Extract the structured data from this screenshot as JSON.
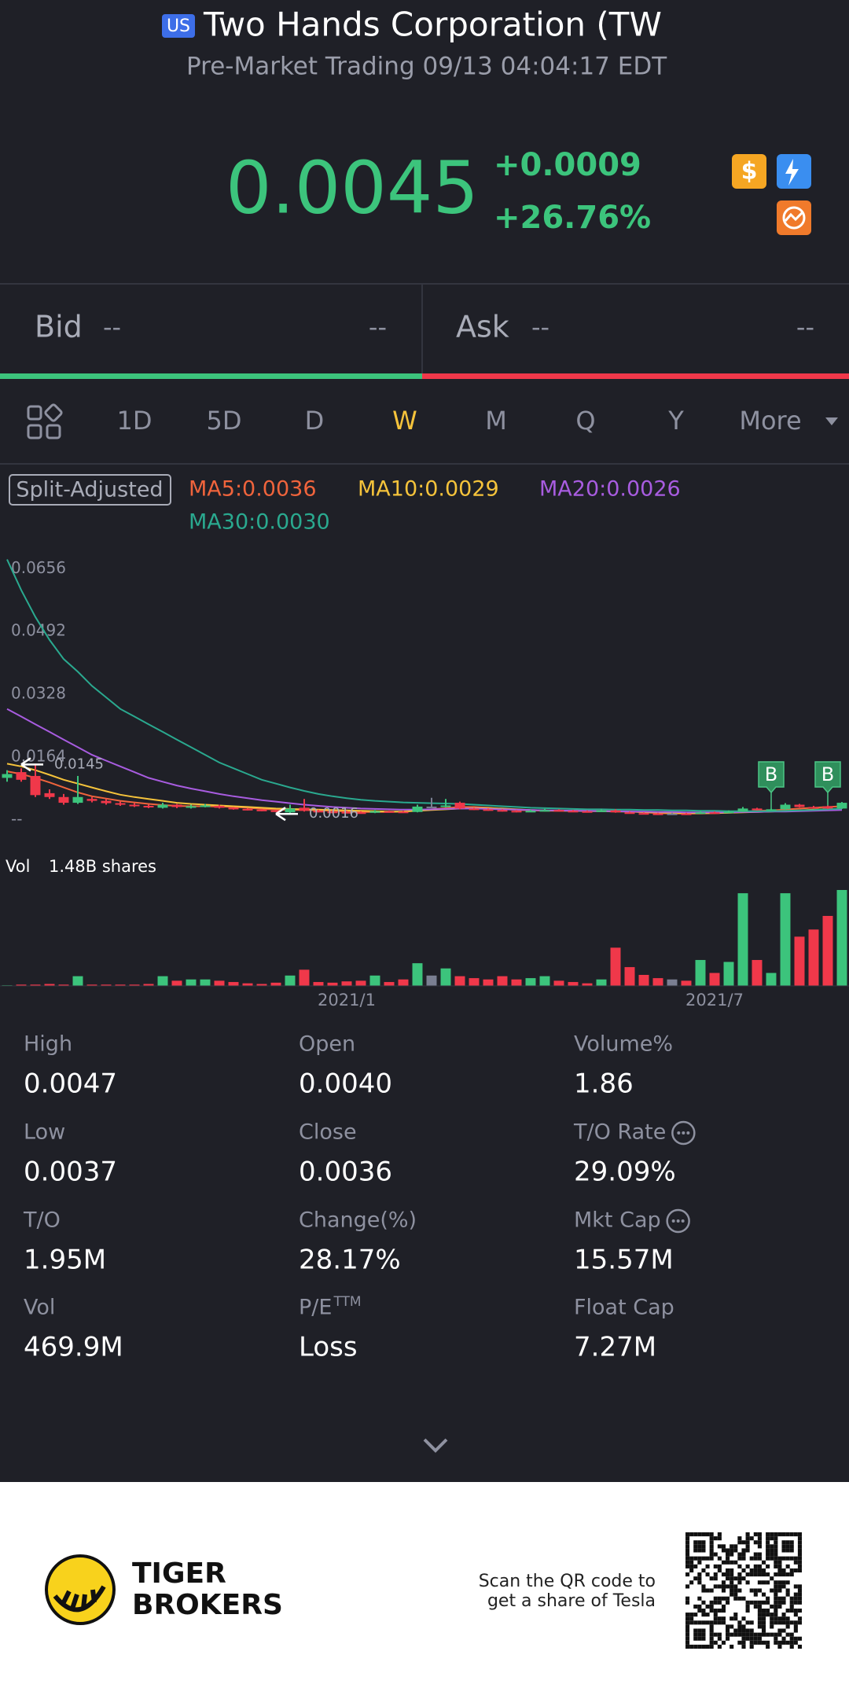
{
  "header": {
    "exchange_badge": "US",
    "title": "Two Hands Corporation (TWOH",
    "subtitle": "Pre-Market Trading 09/13 04:04:17 EDT"
  },
  "quote": {
    "price": "0.0045",
    "change": "+0.0009",
    "change_pct": "+26.76%"
  },
  "bid_ask": {
    "bid_label": "Bid",
    "bid_price": "--",
    "bid_size": "--",
    "ask_label": "Ask",
    "ask_price": "--",
    "ask_size": "--"
  },
  "tabs": {
    "items": [
      "1D",
      "5D",
      "D",
      "W",
      "M",
      "Q",
      "Y",
      "More"
    ],
    "active_index": 3
  },
  "chart_data": {
    "type": "candlestick",
    "badge": "Split-Adjusted",
    "categories": [
      null,
      null,
      null,
      null,
      null,
      null,
      null,
      null,
      null,
      null,
      null,
      null,
      null,
      null,
      null,
      null,
      null,
      null,
      null,
      null,
      null,
      null,
      null,
      null,
      "2021/1",
      null,
      null,
      null,
      null,
      null,
      null,
      null,
      null,
      null,
      null,
      null,
      null,
      null,
      null,
      null,
      null,
      null,
      null,
      null,
      null,
      null,
      null,
      null,
      null,
      null,
      "2021/7",
      null,
      null,
      null,
      null,
      null,
      null,
      null,
      null,
      null
    ],
    "open": [
      0.011,
      0.0125,
      0.0115,
      0.007,
      0.006,
      0.0045,
      0.0055,
      0.005,
      0.0044,
      0.004,
      0.0037,
      0.0032,
      0.004,
      0.0033,
      0.0035,
      0.0037,
      0.0032,
      0.0029,
      0.0027,
      0.0025,
      0.002,
      0.0032,
      0.0024,
      0.0022,
      0.0021,
      0.002,
      0.0019,
      0.0023,
      0.0022,
      0.0021,
      0.0035,
      0.0035,
      0.0045,
      0.003,
      0.0028,
      0.0026,
      0.0024,
      0.0022,
      0.0024,
      0.0026,
      0.0024,
      0.0023,
      0.0022,
      0.0025,
      0.002,
      0.0018,
      0.0017,
      0.0017,
      0.0017,
      0.0016,
      0.002,
      0.0019,
      0.0022,
      0.003,
      0.0026,
      0.0028,
      0.004,
      0.0034,
      0.0036,
      0.003
    ],
    "high": [
      0.013,
      0.0135,
      0.0145,
      0.008,
      0.0068,
      0.0115,
      0.006,
      0.0055,
      0.0048,
      0.0044,
      0.004,
      0.0045,
      0.0042,
      0.004,
      0.0042,
      0.004,
      0.0034,
      0.0031,
      0.0029,
      0.0027,
      0.004,
      0.0055,
      0.0027,
      0.0025,
      0.0024,
      0.0023,
      0.0026,
      0.0025,
      0.0024,
      0.004,
      0.0058,
      0.0055,
      0.0048,
      0.0032,
      0.003,
      0.0028,
      0.0026,
      0.0027,
      0.0029,
      0.0028,
      0.0026,
      0.0025,
      0.0028,
      0.0028,
      0.0022,
      0.002,
      0.0019,
      0.0019,
      0.0019,
      0.0023,
      0.0022,
      0.0025,
      0.0034,
      0.0032,
      0.003,
      0.0044,
      0.0042,
      0.0037,
      0.0038,
      0.0047
    ],
    "low": [
      0.01,
      0.01,
      0.006,
      0.0055,
      0.004,
      0.0042,
      0.0046,
      0.004,
      0.0037,
      0.0034,
      0.0031,
      0.003,
      0.0031,
      0.003,
      0.0033,
      0.003,
      0.0027,
      0.0025,
      0.0023,
      0.0021,
      0.0016,
      0.0022,
      0.002,
      0.0019,
      0.0018,
      0.0017,
      0.0018,
      0.002,
      0.0019,
      0.002,
      0.0033,
      0.0033,
      0.0028,
      0.0026,
      0.0024,
      0.0022,
      0.002,
      0.0021,
      0.0023,
      0.0022,
      0.0021,
      0.002,
      0.0021,
      0.0019,
      0.0017,
      0.0016,
      0.0016,
      0.0016,
      0.0016,
      0.0016,
      0.0018,
      0.0018,
      0.0021,
      0.0025,
      0.0025,
      0.0027,
      0.0033,
      0.0031,
      0.0029,
      0.0029
    ],
    "close": [
      0.012,
      0.0105,
      0.0065,
      0.006,
      0.0045,
      0.006,
      0.005,
      0.0044,
      0.004,
      0.0037,
      0.0034,
      0.004,
      0.0034,
      0.0036,
      0.0038,
      0.0032,
      0.0029,
      0.0027,
      0.0025,
      0.0023,
      0.003,
      0.0024,
      0.0022,
      0.0021,
      0.002,
      0.0019,
      0.0023,
      0.0022,
      0.0021,
      0.0035,
      0.0035,
      0.0038,
      0.003,
      0.0028,
      0.0026,
      0.0024,
      0.0022,
      0.0024,
      0.0026,
      0.0024,
      0.0023,
      0.0022,
      0.0025,
      0.002,
      0.0018,
      0.0017,
      0.0016,
      0.0017,
      0.0016,
      0.002,
      0.0019,
      0.0022,
      0.003,
      0.0026,
      0.0028,
      0.004,
      0.0034,
      0.0032,
      0.003,
      0.0045
    ],
    "up_color": "#3cc47c",
    "down_color": "#f0384a",
    "flat_color": "#7a7f92",
    "ylim": [
      0,
      0.0712
    ],
    "yticks": [
      {
        "value": 0,
        "label": "--"
      },
      0.0164,
      0.0328,
      0.0492,
      0.0656
    ],
    "grid": false,
    "series": [
      {
        "name": "MA5:0.0036",
        "color": "#f0643c",
        "values": [
          0.0127,
          0.012,
          0.011,
          0.0098,
          0.0085,
          0.0072,
          0.0062,
          0.0056,
          0.005,
          0.0046,
          0.0042,
          0.0039,
          0.0037,
          0.0036,
          0.0036,
          0.0035,
          0.0034,
          0.0032,
          0.0029,
          0.0027,
          0.0026,
          0.0026,
          0.0025,
          0.0024,
          0.0022,
          0.0021,
          0.0021,
          0.0021,
          0.0022,
          0.0025,
          0.0028,
          0.0031,
          0.0034,
          0.0034,
          0.0032,
          0.0029,
          0.0026,
          0.0025,
          0.0024,
          0.0024,
          0.0024,
          0.0024,
          0.0023,
          0.0023,
          0.0022,
          0.002,
          0.0018,
          0.0017,
          0.0017,
          0.0017,
          0.0018,
          0.0019,
          0.0021,
          0.0024,
          0.0025,
          0.0027,
          0.003,
          0.0032,
          0.0034,
          0.0036
        ]
      },
      {
        "name": "MA10:0.0029",
        "color": "#f5c33b",
        "values": [
          0.0147,
          0.014,
          0.013,
          0.0118,
          0.0105,
          0.0095,
          0.0085,
          0.0075,
          0.0066,
          0.006,
          0.0055,
          0.005,
          0.0045,
          0.0042,
          0.004,
          0.0038,
          0.0036,
          0.0034,
          0.0032,
          0.003,
          0.0029,
          0.0028,
          0.0027,
          0.0026,
          0.0025,
          0.0024,
          0.0023,
          0.0022,
          0.0022,
          0.0024,
          0.0026,
          0.0028,
          0.003,
          0.0031,
          0.0031,
          0.003,
          0.0028,
          0.0026,
          0.0025,
          0.0024,
          0.0024,
          0.0023,
          0.0023,
          0.0022,
          0.0022,
          0.0021,
          0.002,
          0.0019,
          0.0018,
          0.0018,
          0.0018,
          0.0019,
          0.002,
          0.0021,
          0.0022,
          0.0024,
          0.0025,
          0.0027,
          0.0028,
          0.0029
        ]
      },
      {
        "name": "MA20:0.0026",
        "color": "#a85ce0",
        "values": [
          0.029,
          0.027,
          0.025,
          0.023,
          0.021,
          0.019,
          0.017,
          0.0155,
          0.014,
          0.0125,
          0.011,
          0.01,
          0.009,
          0.0082,
          0.0075,
          0.0068,
          0.0062,
          0.0057,
          0.0052,
          0.0048,
          0.0044,
          0.004,
          0.0037,
          0.0034,
          0.0032,
          0.003,
          0.0029,
          0.0028,
          0.0027,
          0.0027,
          0.0028,
          0.0029,
          0.003,
          0.003,
          0.0029,
          0.0028,
          0.0027,
          0.0026,
          0.0025,
          0.0025,
          0.0024,
          0.0024,
          0.0023,
          0.0023,
          0.0022,
          0.0022,
          0.0021,
          0.0021,
          0.002,
          0.002,
          0.002,
          0.002,
          0.0021,
          0.0021,
          0.0022,
          0.0022,
          0.0023,
          0.0024,
          0.0025,
          0.0026
        ]
      },
      {
        "name": "MA30:0.0030",
        "color": "#2aa98f",
        "values": [
          0.068,
          0.06,
          0.053,
          0.047,
          0.042,
          0.0387,
          0.035,
          0.032,
          0.029,
          0.027,
          0.025,
          0.023,
          0.021,
          0.019,
          0.017,
          0.015,
          0.0135,
          0.012,
          0.0105,
          0.0095,
          0.0085,
          0.0076,
          0.0068,
          0.0062,
          0.0057,
          0.0053,
          0.005,
          0.0048,
          0.0046,
          0.0045,
          0.0044,
          0.0043,
          0.0042,
          0.004,
          0.0038,
          0.0036,
          0.0034,
          0.0032,
          0.0031,
          0.003,
          0.0029,
          0.0028,
          0.0028,
          0.0027,
          0.0027,
          0.0026,
          0.0026,
          0.0025,
          0.0025,
          0.0024,
          0.0024,
          0.0023,
          0.0023,
          0.0023,
          0.0023,
          0.0024,
          0.0025,
          0.0026,
          0.0028,
          0.003
        ]
      }
    ],
    "max_price": 0.0145,
    "min_price": 0.0016,
    "buy_markers": [
      {
        "label": "B",
        "index": 54
      },
      {
        "label": "B",
        "index": 58
      }
    ],
    "volume": {
      "label": "Vol",
      "total_label": "1.48B shares",
      "ylim": [
        0,
        1.48
      ],
      "values": [
        0.01,
        0.02,
        0.02,
        0.03,
        0.02,
        0.15,
        0.02,
        0.02,
        0.02,
        0.02,
        0.03,
        0.15,
        0.08,
        0.1,
        0.1,
        0.08,
        0.06,
        0.04,
        0.03,
        0.05,
        0.16,
        0.25,
        0.06,
        0.05,
        0.07,
        0.08,
        0.16,
        0.06,
        0.1,
        0.35,
        0.16,
        0.27,
        0.15,
        0.12,
        0.1,
        0.15,
        0.1,
        0.12,
        0.15,
        0.08,
        0.06,
        0.04,
        0.1,
        0.59,
        0.29,
        0.17,
        0.12,
        0.1,
        0.08,
        0.4,
        0.2,
        0.37,
        1.43,
        0.4,
        0.2,
        1.43,
        0.76,
        0.87,
        1.08,
        1.48
      ]
    }
  },
  "stats": [
    {
      "label": "High",
      "value": "0.0047"
    },
    {
      "label": "Open",
      "value": "0.0040"
    },
    {
      "label": "Volume%",
      "value": "1.86"
    },
    {
      "label": "Low",
      "value": "0.0037"
    },
    {
      "label": "Close",
      "value": "0.0036"
    },
    {
      "label": "T/O Rate",
      "value": "29.09%",
      "info": true
    },
    {
      "label": "T/O",
      "value": "1.95M"
    },
    {
      "label": "Change(%)",
      "value": "28.17%"
    },
    {
      "label": "Mkt Cap",
      "value": "15.57M",
      "info": true
    },
    {
      "label": "Vol",
      "value": "469.9M"
    },
    {
      "label": "P/E",
      "label_sup": "TTM",
      "value": "Loss"
    },
    {
      "label": "Float Cap",
      "value": "7.27M"
    }
  ],
  "footer": {
    "brand_line1": "TIGER",
    "brand_line2": "BROKERS",
    "scan_line1": "Scan the QR code to",
    "scan_line2": "get a share of Tesla"
  }
}
